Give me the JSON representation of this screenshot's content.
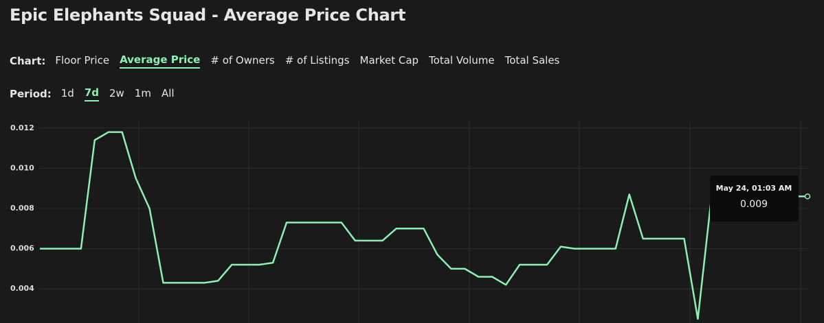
{
  "header": {
    "title": "Epic Elephants Squad - Average Price Chart"
  },
  "chart_tabs": {
    "label": "Chart:",
    "options": [
      "Floor Price",
      "Average Price",
      "# of Owners",
      "# of Listings",
      "Market Cap",
      "Total Volume",
      "Total Sales"
    ],
    "active": 1
  },
  "period_tabs": {
    "label": "Period:",
    "options": [
      "1d",
      "7d",
      "2w",
      "1m",
      "All"
    ],
    "active": 1
  },
  "chart_data": {
    "type": "line",
    "series": [
      {
        "color": "#8df0b4",
        "values": [
          0.006,
          0.006,
          0.006,
          0.006,
          0.0114,
          0.0118,
          0.0118,
          0.0095,
          0.008,
          0.0043,
          0.0043,
          0.0043,
          0.0043,
          0.0044,
          0.0052,
          0.0052,
          0.0052,
          0.0053,
          0.0073,
          0.0073,
          0.0073,
          0.0073,
          0.0073,
          0.0064,
          0.0064,
          0.0064,
          0.007,
          0.007,
          0.007,
          0.0057,
          0.005,
          0.005,
          0.0046,
          0.0046,
          0.0042,
          0.0052,
          0.0052,
          0.0052,
          0.0061,
          0.006,
          0.006,
          0.006,
          0.006,
          0.0087,
          0.0065,
          0.0065,
          0.0065,
          0.0065,
          0.0025,
          0.0086,
          0.0086,
          0.0086,
          0.0086,
          0.0086,
          0.0086,
          0.0086,
          0.0086
        ]
      }
    ],
    "ylim": [
      0.0023,
      0.0123
    ],
    "yticks": [
      0.004,
      0.006,
      0.008,
      {
        "value": 0.01,
        "label": "0.010"
      },
      0.012
    ],
    "grid": true,
    "tooltip": {
      "label": "May 24, 01:03 AM",
      "value": 0.009
    }
  }
}
